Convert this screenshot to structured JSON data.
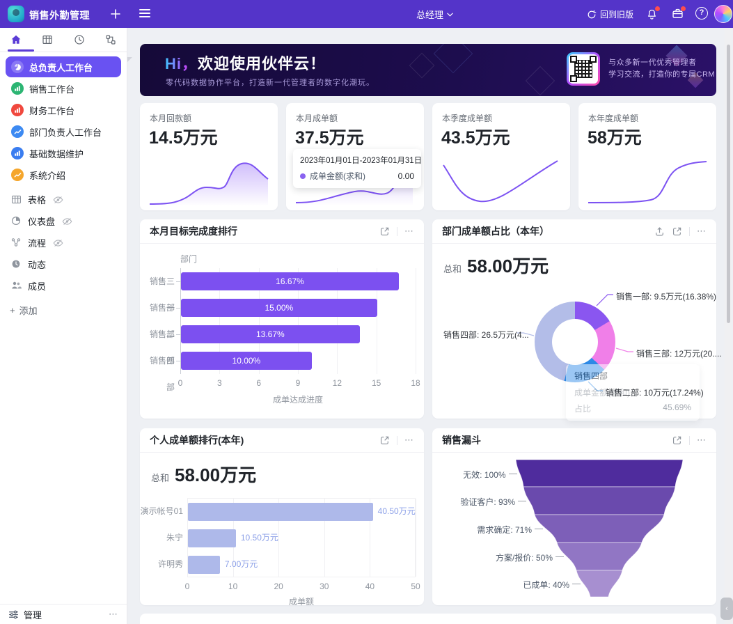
{
  "navbar": {
    "app_title": "销售外勤管理",
    "role": "总经理",
    "back_label": "回到旧版",
    "help_glyph": "?"
  },
  "icons": {
    "more_glyph": "⋯",
    "collapse_glyph": "‹",
    "add_glyph": "+"
  },
  "sidebar": {
    "items": [
      {
        "label": "总负责人工作台",
        "icon": "pie",
        "color": "rgba(255,255,255,.22)",
        "active": true
      },
      {
        "label": "销售工作台",
        "icon": "bars",
        "color": "#2cb573",
        "active": false
      },
      {
        "label": "财务工作台",
        "icon": "bars",
        "color": "#f0483e",
        "active": false
      },
      {
        "label": "部门负责人工作台",
        "icon": "trend",
        "color": "#3d8af2",
        "active": false
      },
      {
        "label": "基础数据维护",
        "icon": "bars",
        "color": "#3a7df0",
        "active": false
      },
      {
        "label": "系统介绍",
        "icon": "trend",
        "color": "#f5a62c",
        "active": false
      }
    ],
    "tools": [
      {
        "label": "表格",
        "icon": "table",
        "hidden": true
      },
      {
        "label": "仪表盘",
        "icon": "dashboard",
        "hidden": true
      },
      {
        "label": "流程",
        "icon": "flow",
        "hidden": true
      },
      {
        "label": "动态",
        "icon": "feed",
        "hidden": false
      },
      {
        "label": "成员",
        "icon": "members",
        "hidden": false
      }
    ],
    "add_label": "添加",
    "manage_label": "管理"
  },
  "banner": {
    "title_hi": "Hi，",
    "title_rest": "欢迎使用伙伴云！",
    "subtitle": "零代码数据协作平台，打造新一代管理者的数字化潮玩。",
    "qr_caption_line1": "与众多新一代优秀管理者",
    "qr_caption_line2": "学习交流，打造你的专属CRM"
  },
  "stat_cards": [
    {
      "title": "本月回款额",
      "value": "14.5万元"
    },
    {
      "title": "本月成单额",
      "value": "37.5万元",
      "tooltip": {
        "date_range": "2023年01月01日-2023年01月31日",
        "series": "成单金额(求和)",
        "value": "0.00"
      }
    },
    {
      "title": "本季度成单额",
      "value": "43.5万元"
    },
    {
      "title": "本年度成单额",
      "value": "58万元"
    }
  ],
  "chart_data": [
    {
      "type": "bar",
      "orientation": "horizontal",
      "title": "本月目标完成度排行",
      "categories": [
        "销售三部",
        "销售一部",
        "销售二部",
        "销售四部"
      ],
      "values": [
        16.67,
        15.0,
        13.67,
        10.0
      ],
      "bar_labels": [
        "16.67%",
        "15.00%",
        "13.67%",
        "10.00%"
      ],
      "xlabel": "成单达成进度",
      "ylabel": "部门",
      "xlim": [
        0,
        18
      ],
      "xticks": [
        0,
        3,
        6,
        9,
        12,
        15,
        18
      ],
      "bar_color": "#7c50f0",
      "grid": true
    },
    {
      "type": "pie",
      "title": "部门成单额占比（本年）",
      "total_label": "总和",
      "total_value": "58.00万元",
      "slices": [
        {
          "name": "销售一部",
          "label": "销售一部: 9.5万元(16.38%)",
          "value": 16.38,
          "color": "#8a56f0"
        },
        {
          "name": "销售三部",
          "label": "销售三部: 12万元(20....",
          "value": 20.69,
          "color": "#f07fe8"
        },
        {
          "name": "销售二部",
          "label": "销售二部: 10万元(17.24%)",
          "value": 17.24,
          "color": "#2e8be8"
        },
        {
          "name": "销售四部",
          "label": "销售四部: 26.5万元(4...",
          "value": 45.69,
          "color": "#b3bde8"
        }
      ],
      "tooltip": {
        "title": "销售四部",
        "row1_label": "成单金额(求和)",
        "row2_label": "占比",
        "row2_value": "45.69%"
      }
    },
    {
      "type": "bar",
      "orientation": "horizontal",
      "title": "个人成单额排行(本年)",
      "total_label": "总和",
      "total_value": "58.00万元",
      "categories": [
        "演示帐号01",
        "朱宁",
        "许明秀"
      ],
      "values": [
        40.5,
        10.5,
        7.0
      ],
      "bar_labels": [
        "40.50万元",
        "10.50万元",
        "7.00万元"
      ],
      "xlabel": "成单额",
      "xlim": [
        0,
        50
      ],
      "xticks": [
        0,
        10,
        20,
        30,
        40,
        50
      ],
      "bar_color": "#aeb9ea",
      "value_label_color": "#8ca0e8",
      "grid": true
    },
    {
      "type": "funnel",
      "title": "销售漏斗",
      "stages": [
        {
          "label": "无效: 100%",
          "value": 100,
          "color": "#4f2c9d"
        },
        {
          "label": "验证客户: 93%",
          "value": 93,
          "color": "#6a4aad"
        },
        {
          "label": "需求确定: 71%",
          "value": 71,
          "color": "#7d5fb8"
        },
        {
          "label": "方案/报价: 50%",
          "value": 50,
          "color": "#9176c4"
        },
        {
          "label": "已成单: 40%",
          "value": 40,
          "color": "#a78fd0"
        }
      ]
    }
  ]
}
